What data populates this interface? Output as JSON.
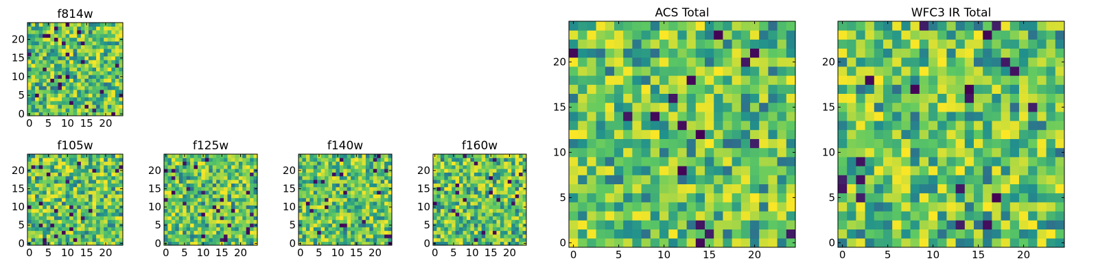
{
  "figure": {
    "background": "#ffffff"
  },
  "chart_data": [
    {
      "id": "f814w",
      "type": "heatmap",
      "title": "f814w",
      "grid_size": 25,
      "xlim": [
        -0.5,
        24.5
      ],
      "ylim": [
        -0.5,
        24.5
      ],
      "xticks": [
        0,
        5,
        10,
        15,
        20
      ],
      "yticks": [
        0,
        5,
        10,
        15,
        20
      ],
      "colormap": "viridis",
      "seed": 11,
      "values_note": "Per-pixel values are not printed in the image; rendered as random noise."
    },
    {
      "id": "f105w",
      "type": "heatmap",
      "title": "f105w",
      "grid_size": 25,
      "xlim": [
        -0.5,
        24.5
      ],
      "ylim": [
        -0.5,
        24.5
      ],
      "xticks": [
        0,
        5,
        10,
        15,
        20
      ],
      "yticks": [
        0,
        5,
        10,
        15,
        20
      ],
      "colormap": "viridis",
      "seed": 23
    },
    {
      "id": "f125w",
      "type": "heatmap",
      "title": "f125w",
      "grid_size": 25,
      "xlim": [
        -0.5,
        24.5
      ],
      "ylim": [
        -0.5,
        24.5
      ],
      "xticks": [
        0,
        5,
        10,
        15,
        20
      ],
      "yticks": [
        0,
        5,
        10,
        15,
        20
      ],
      "colormap": "viridis",
      "seed": 37
    },
    {
      "id": "f140w",
      "type": "heatmap",
      "title": "f140w",
      "grid_size": 25,
      "xlim": [
        -0.5,
        24.5
      ],
      "ylim": [
        -0.5,
        24.5
      ],
      "xticks": [
        0,
        5,
        10,
        15,
        20
      ],
      "yticks": [
        0,
        5,
        10,
        15,
        20
      ],
      "colormap": "viridis",
      "seed": 41
    },
    {
      "id": "f160w",
      "type": "heatmap",
      "title": "f160w",
      "grid_size": 25,
      "xlim": [
        -0.5,
        24.5
      ],
      "ylim": [
        -0.5,
        24.5
      ],
      "xticks": [
        0,
        5,
        10,
        15,
        20
      ],
      "yticks": [
        0,
        5,
        10,
        15,
        20
      ],
      "colormap": "viridis",
      "seed": 53
    },
    {
      "id": "acs_total",
      "type": "heatmap",
      "title": "ACS Total",
      "grid_size": 25,
      "xlim": [
        -0.5,
        24.5
      ],
      "ylim": [
        -0.5,
        24.5
      ],
      "xticks": [
        0,
        5,
        10,
        15,
        20
      ],
      "yticks": [
        0,
        5,
        10,
        15,
        20
      ],
      "colormap": "viridis",
      "seed": 67
    },
    {
      "id": "wfc3_ir_total",
      "type": "heatmap",
      "title": "WFC3 IR Total",
      "grid_size": 25,
      "xlim": [
        -0.5,
        24.5
      ],
      "ylim": [
        -0.5,
        24.5
      ],
      "xticks": [
        0,
        5,
        10,
        15,
        20
      ],
      "yticks": [
        0,
        5,
        10,
        15,
        20
      ],
      "colormap": "viridis",
      "seed": 79
    }
  ],
  "colormap_stops": [
    "#440154",
    "#3b528b",
    "#21918c",
    "#5ec962",
    "#fde725"
  ]
}
